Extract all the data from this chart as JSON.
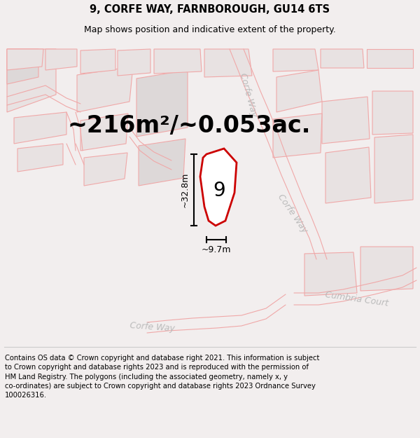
{
  "title": "9, CORFE WAY, FARNBOROUGH, GU14 6TS",
  "subtitle": "Map shows position and indicative extent of the property.",
  "area_text": "~216m²/~0.053ac.",
  "label_number": "9",
  "dim_height": "~32.8m",
  "dim_width": "~9.7m",
  "footer_text": "Contains OS data © Crown copyright and database right 2021. This information is subject\nto Crown copyright and database rights 2023 and is reproduced with the permission of\nHM Land Registry. The polygons (including the associated geometry, namely x, y\nco-ordinates) are subject to Crown copyright and database rights 2023 Ordnance Survey\n100026316.",
  "bg_color": "#f2eeee",
  "map_bg": "#f2eeee",
  "plot_outline_color": "#cc0000",
  "road_label_color": "#bbbbbb",
  "bldg_fill": "#e8e2e2",
  "bldg_edge": "#f0a8a8",
  "bldg_fill2": "#ddd8d8",
  "title_fontsize": 10.5,
  "subtitle_fontsize": 9,
  "area_fontsize": 24,
  "footer_fontsize": 7.2,
  "road_label_fontsize": 9,
  "dim_fontsize": 9,
  "label_fontsize": 20
}
